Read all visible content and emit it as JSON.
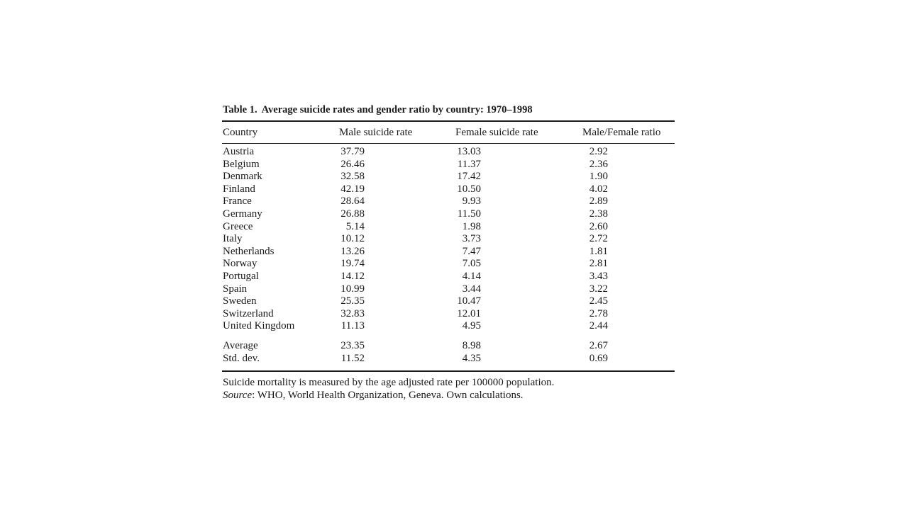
{
  "table": {
    "caption_label": "Table 1.",
    "caption_text": "Average suicide rates and gender ratio by country: 1970–1998",
    "headers": [
      "Country",
      "Male suicide rate",
      "Female suicide rate",
      "Male/Female ratio"
    ],
    "rows": [
      [
        "Austria",
        "37.79",
        "13.03",
        "2.92"
      ],
      [
        "Belgium",
        "26.46",
        "11.37",
        "2.36"
      ],
      [
        "Denmark",
        "32.58",
        "17.42",
        "1.90"
      ],
      [
        "Finland",
        "42.19",
        "10.50",
        "4.02"
      ],
      [
        "France",
        "28.64",
        "9.93",
        "2.89"
      ],
      [
        "Germany",
        "26.88",
        "11.50",
        "2.38"
      ],
      [
        "Greece",
        "5.14",
        "1.98",
        "2.60"
      ],
      [
        "Italy",
        "10.12",
        "3.73",
        "2.72"
      ],
      [
        "Netherlands",
        "13.26",
        "7.47",
        "1.81"
      ],
      [
        "Norway",
        "19.74",
        "7.05",
        "2.81"
      ],
      [
        "Portugal",
        "14.12",
        "4.14",
        "3.43"
      ],
      [
        "Spain",
        "10.99",
        "3.44",
        "3.22"
      ],
      [
        "Sweden",
        "25.35",
        "10.47",
        "2.45"
      ],
      [
        "Switzerland",
        "32.83",
        "12.01",
        "2.78"
      ],
      [
        "United Kingdom",
        "11.13",
        "4.95",
        "2.44"
      ]
    ],
    "summary": [
      [
        "Average",
        "23.35",
        "8.98",
        "2.67"
      ],
      [
        "Std. dev.",
        "11.52",
        "4.35",
        "0.69"
      ]
    ]
  },
  "notes": {
    "measure": "Suicide mortality is measured by the age adjusted rate per 100000 population.",
    "source_label": "Source",
    "source_text": ": WHO, World Health Organization, Geneva. Own calculations."
  }
}
